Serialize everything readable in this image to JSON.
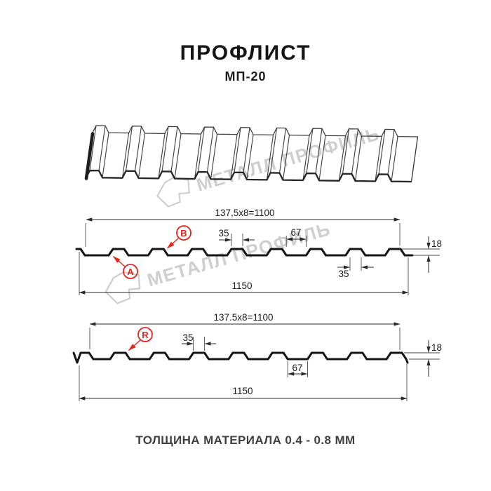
{
  "title": "ПРОФЛИСТ",
  "subtitle": "МП-20",
  "watermark": {
    "brand": "МЕТАЛЛ ПРОФИЛЬ"
  },
  "footer": "ТОЛЩИНА МАТЕРИАЛА 0.4 - 0.8 ММ",
  "colors": {
    "accent_red": "#e8241c",
    "drawing_black": "#151515",
    "watermark_gray": "#cfcfcf"
  },
  "profile_top": {
    "pitch_formula": "137,5x8=1100",
    "overall_width": "1150",
    "rib_top_width": "35",
    "valley_width": "67",
    "rib_bottom_width": "35",
    "profile_height": "18",
    "label_a": "A",
    "label_b": "B"
  },
  "profile_bottom": {
    "pitch_formula": "137.5x8=1100",
    "overall_width": "1150",
    "rib_top_width": "35",
    "valley_width": "67",
    "profile_height": "18",
    "label_r": "R"
  }
}
